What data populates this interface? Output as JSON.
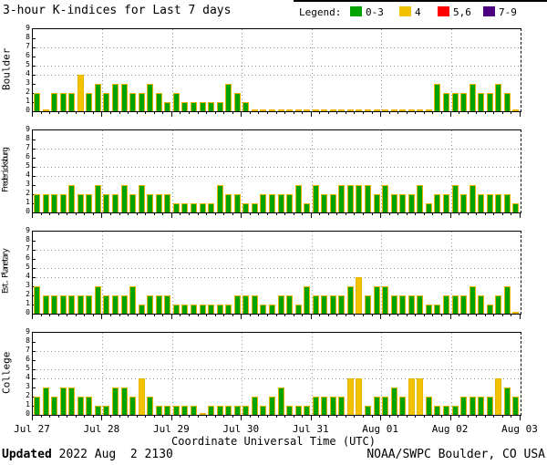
{
  "title": "3-hour K-indices for Last 7 days",
  "legend": {
    "label": "Legend:",
    "items": [
      {
        "label": "0-3",
        "color": "#00A300"
      },
      {
        "label": "4",
        "color": "#F2C100"
      },
      {
        "label": "5,6",
        "color": "#FF0000"
      },
      {
        "label": "7-9",
        "color": "#4B0082"
      }
    ]
  },
  "colors": {
    "green": "#00A300",
    "yellow": "#F2C100",
    "red": "#FF0000",
    "purple": "#4B0082",
    "bar_outline": "#E8B400",
    "grid": "#909090",
    "axis": "#000000"
  },
  "footer": {
    "updated_label": "Updated",
    "updated_value": " 2022 Aug  2 2130",
    "source": "NOAA/SWPC Boulder, CO USA"
  },
  "chart_data": {
    "type": "bar",
    "title": "3-hour K-indices for Last 7 days",
    "xlabel": "Coordinate Universal Time (UTC)",
    "x_day_labels": [
      "Jul 27",
      "Jul 28",
      "Jul 29",
      "Jul 30",
      "Jul 31",
      "Aug 01",
      "Aug 02",
      "Aug 03"
    ],
    "bars_per_day": 8,
    "ylim": [
      0,
      9
    ],
    "yticks": [
      0,
      1,
      2,
      3,
      4,
      5,
      6,
      7,
      8,
      9
    ],
    "dotted_hlines": [
      4,
      5,
      7
    ],
    "grid": "dotted-day-boundaries",
    "legend_position": "top-right",
    "color_rule": {
      "green_max": 3,
      "yellow_max": 4,
      "red_max": 6,
      "purple_max": 9
    },
    "panels": [
      {
        "station": "Boulder",
        "values": [
          2,
          0,
          2,
          2,
          2,
          4,
          2,
          3,
          2,
          3,
          3,
          2,
          2,
          3,
          2,
          1,
          2,
          1,
          1,
          1,
          1,
          1,
          3,
          2,
          1,
          0,
          0,
          0,
          0,
          0,
          0,
          0,
          0,
          0,
          0,
          0,
          0,
          0,
          0,
          0,
          0,
          0,
          0,
          0,
          0,
          0,
          3,
          2,
          2,
          2,
          3,
          2,
          2,
          3,
          2,
          0
        ]
      },
      {
        "station": "Fredericksburg",
        "values": [
          2,
          2,
          2,
          2,
          3,
          2,
          2,
          3,
          2,
          2,
          3,
          2,
          3,
          2,
          2,
          2,
          1,
          1,
          1,
          1,
          1,
          3,
          2,
          2,
          1,
          1,
          2,
          2,
          2,
          2,
          3,
          1,
          3,
          2,
          2,
          3,
          3,
          3,
          3,
          2,
          3,
          2,
          2,
          2,
          3,
          1,
          2,
          2,
          3,
          2,
          3,
          2,
          2,
          2,
          2,
          1
        ]
      },
      {
        "station": "Est. Planetary",
        "values": [
          3,
          2,
          2,
          2,
          2,
          2,
          2,
          3,
          2,
          2,
          2,
          3,
          1,
          2,
          2,
          2,
          1,
          1,
          1,
          1,
          1,
          1,
          1,
          2,
          2,
          2,
          1,
          1,
          2,
          2,
          1,
          3,
          2,
          2,
          2,
          2,
          3,
          4,
          2,
          3,
          3,
          2,
          2,
          2,
          2,
          1,
          1,
          2,
          2,
          2,
          3,
          2,
          1,
          2,
          3,
          0
        ]
      },
      {
        "station": "College",
        "values": [
          2,
          3,
          2,
          3,
          3,
          2,
          2,
          1,
          1,
          3,
          3,
          2,
          4,
          2,
          1,
          1,
          1,
          1,
          1,
          0,
          1,
          1,
          1,
          1,
          1,
          2,
          1,
          2,
          3,
          1,
          1,
          1,
          2,
          2,
          2,
          2,
          4,
          4,
          1,
          2,
          2,
          3,
          2,
          4,
          4,
          2,
          1,
          1,
          1,
          2,
          2,
          2,
          2,
          4,
          3,
          2
        ]
      }
    ]
  }
}
